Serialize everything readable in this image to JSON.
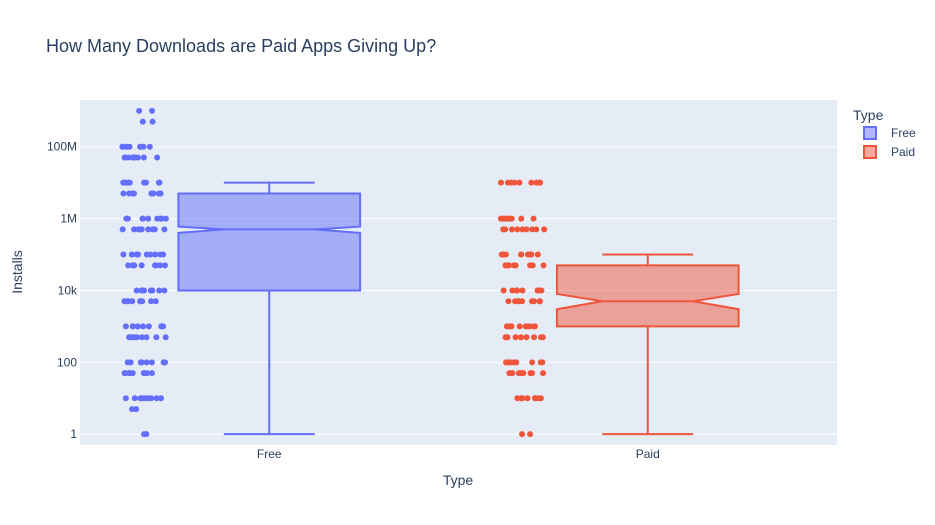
{
  "chart_data": {
    "type": "box",
    "title": "How Many Downloads are Paid Apps Giving Up?",
    "xlabel": "Type",
    "ylabel": "Installs",
    "y_scale": "log",
    "ylim": [
      0.5,
      2000000000
    ],
    "categories": [
      "Free",
      "Paid"
    ],
    "y_ticks": [
      {
        "value": 1,
        "label": "1"
      },
      {
        "value": 100,
        "label": "100"
      },
      {
        "value": 10000,
        "label": "10k"
      },
      {
        "value": 1000000,
        "label": "1M"
      },
      {
        "value": 100000000,
        "label": "100M"
      }
    ],
    "grid": true,
    "notched": true,
    "legend": {
      "title": "Type",
      "position": "top-right",
      "entries": [
        "Free",
        "Paid"
      ]
    },
    "series": [
      {
        "name": "Free",
        "color": "#636efa",
        "box": {
          "min": 1,
          "q1": 10000,
          "median": 500000,
          "q3": 5000000,
          "max": 10000000,
          "notch_low": 400000,
          "notch_high": 600000
        },
        "points": [
          1,
          5,
          10,
          50,
          100,
          500,
          1000,
          5000,
          10000,
          50000,
          100000,
          500000,
          1000000,
          5000000,
          10000000,
          50000000,
          100000000,
          500000000,
          1000000000
        ]
      },
      {
        "name": "Paid",
        "color": "#ef553b",
        "box": {
          "min": 1,
          "q1": 1000,
          "median": 5000,
          "q3": 50000,
          "max": 100000,
          "notch_low": 3000,
          "notch_high": 8000
        },
        "points": [
          1,
          10,
          50,
          100,
          500,
          1000,
          5000,
          10000,
          50000,
          100000,
          500000,
          1000000,
          10000000
        ]
      }
    ]
  }
}
